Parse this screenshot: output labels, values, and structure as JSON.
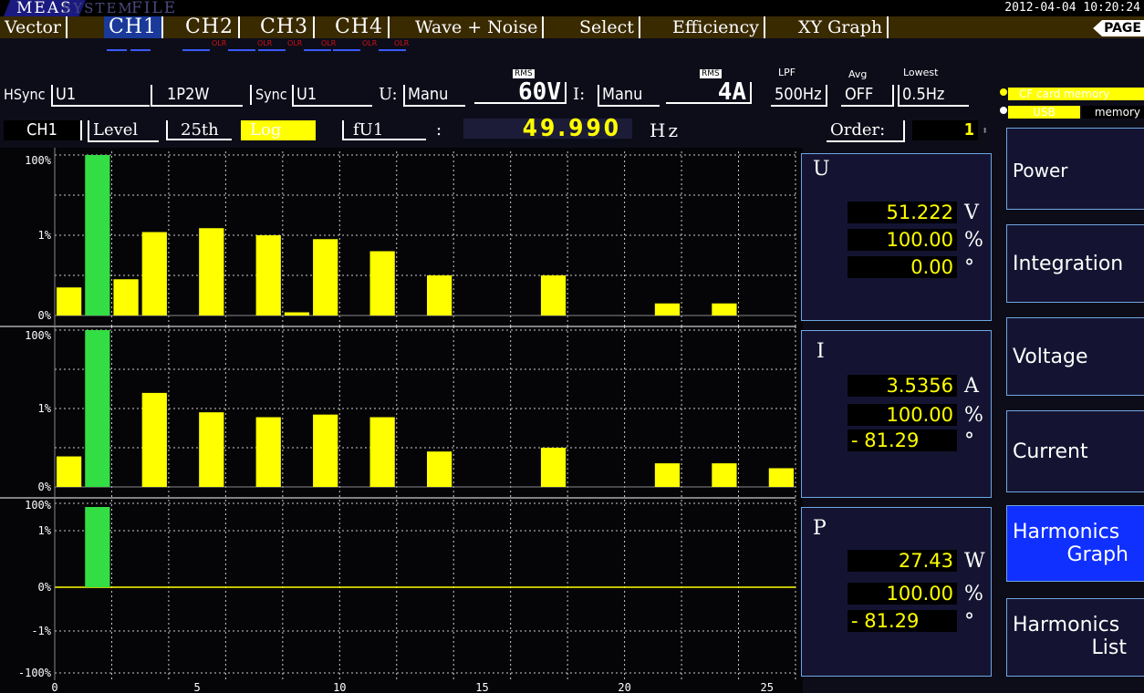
{
  "top": {
    "tabs": [
      "MEAS",
      "SYSTEM",
      "FILE"
    ],
    "datetime": "2012-04-04 10:20:24"
  },
  "nav": {
    "tabs": [
      "Vector",
      "CH1",
      "CH2",
      "CH3",
      "CH4",
      "Wave + Noise",
      "Select",
      "Efficiency",
      "XY Graph"
    ],
    "selected": "CH1",
    "page": "PAGE"
  },
  "indicators": {
    "olr": [
      "OLR",
      "OLR",
      "OLR",
      "OLR",
      "OLR",
      "OLR"
    ],
    "rms1": "RMS",
    "rms2": "RMS",
    "lpf": "LPF",
    "avg": "Avg",
    "lowest": "Lowest"
  },
  "settings": {
    "hsync_label": "HSync",
    "hsync": "U1",
    "wiring": "1P2W",
    "sync_label": "Sync",
    "sync": "U1",
    "u_label": "U:",
    "u_mode": "Manu",
    "u_range": "60V",
    "i_label": "I:",
    "i_mode": "Manu",
    "i_range": "4A",
    "lpf_value": "500Hz",
    "avg_value": "OFF",
    "lowest_value": "0.5Hz"
  },
  "storage": {
    "cf": "CF card memory",
    "usb": "USB",
    "usb_mem": "memory"
  },
  "display": {
    "channel": "CH1",
    "mode": "Level",
    "order_max": "25th",
    "scale": "Log",
    "freq_src": "fU1",
    "colon": ":",
    "freq": "49.990",
    "freq_unit": "Hz",
    "order_label": "Order:",
    "order": "1"
  },
  "panels": {
    "U": {
      "title": "U",
      "v1": "51.222",
      "u1": "V",
      "v2": "100.00",
      "u2": "%",
      "v3": "0.00",
      "u3": "°"
    },
    "I": {
      "title": "I",
      "v1": "3.5356",
      "u1": "A",
      "v2": "100.00",
      "u2": "%",
      "v3": "- 81.29",
      "u3": "°"
    },
    "P": {
      "title": "P",
      "v1": "27.43",
      "u1": "W",
      "v2": "100.00",
      "u2": "%",
      "v3": "- 81.29",
      "u3": "°"
    }
  },
  "menu": {
    "power": "Power",
    "integration": "Integration",
    "voltage": "Voltage",
    "current": "Current",
    "harm_graph_1": "Harmonics",
    "harm_graph_2": "Graph",
    "harm_list_1": "Harmonics",
    "harm_list_2": "List"
  },
  "colors": {
    "fundamental": "#33dd44",
    "harmonic": "#ffff00",
    "grid": "#cccccc",
    "accent": "#1030ff"
  },
  "chart_data": [
    {
      "type": "bar",
      "name": "U",
      "scale": "log",
      "ytick_labels": [
        "100%",
        "1%",
        "0%"
      ],
      "x": [
        0,
        1,
        2,
        3,
        4,
        5,
        6,
        7,
        8,
        9,
        10,
        11,
        12,
        13,
        14,
        15,
        16,
        17,
        18,
        19,
        20,
        21,
        22,
        23,
        24,
        25
      ],
      "values": [
        0.05,
        100,
        0.08,
        1.2,
        0.01,
        1.5,
        0.01,
        1.0,
        0.012,
        0.8,
        0.01,
        0.4,
        0.004,
        0.1,
        0,
        0,
        0,
        0.1,
        0,
        0,
        0,
        0.02,
        0,
        0.02,
        0,
        0
      ],
      "xticks": [
        "0",
        "5",
        "10",
        "15",
        "20",
        "25"
      ]
    },
    {
      "type": "bar",
      "name": "I",
      "scale": "log",
      "ytick_labels": [
        "100%",
        "1%",
        "0%"
      ],
      "x": [
        0,
        1,
        2,
        3,
        4,
        5,
        6,
        7,
        8,
        9,
        10,
        11,
        12,
        13,
        14,
        15,
        16,
        17,
        18,
        19,
        20,
        21,
        22,
        23,
        24,
        25
      ],
      "values": [
        0.06,
        100,
        0,
        2.5,
        0,
        0.8,
        0,
        0.6,
        0,
        0.7,
        0,
        0.6,
        0,
        0.08,
        0,
        0,
        0,
        0.1,
        0,
        0,
        0,
        0.04,
        0,
        0.04,
        0,
        0.03
      ],
      "xticks": [
        "0",
        "5",
        "10",
        "15",
        "20",
        "25"
      ]
    },
    {
      "type": "bar",
      "name": "P",
      "scale": "log-signed",
      "ytick_labels": [
        "100%",
        "1%",
        "0%",
        "-1%",
        "-100%"
      ],
      "x": [
        0,
        1,
        2,
        3,
        4,
        5,
        6,
        7,
        8,
        9,
        10,
        11,
        12,
        13,
        14,
        15,
        16,
        17,
        18,
        19,
        20,
        21,
        22,
        23,
        24,
        25
      ],
      "values": [
        0,
        100,
        0,
        0,
        0,
        0,
        0,
        0,
        0,
        0,
        0,
        0,
        0,
        0,
        0,
        0,
        0,
        0,
        0,
        0,
        0,
        0,
        0,
        0,
        0,
        0
      ],
      "xticks": [
        "0",
        "5",
        "10",
        "15",
        "20",
        "25"
      ]
    }
  ]
}
